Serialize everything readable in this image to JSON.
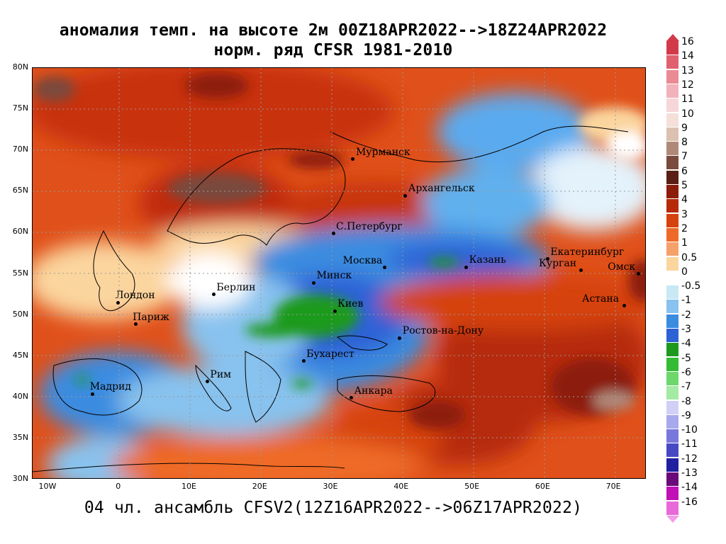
{
  "title": {
    "line1": "аномалия темп. на высоте 2м 00Z18APR2022-->18Z24APR2022",
    "line2": "норм. ряд CFSR 1981-2010"
  },
  "footer": "04 чл. ансамбль CFSV2(12Z16APR2022-->06Z17APR2022)",
  "lat_labels": [
    "80N",
    "75N",
    "70N",
    "65N",
    "60N",
    "55N",
    "50N",
    "45N",
    "40N",
    "35N",
    "30N"
  ],
  "lon_labels": [
    "10W",
    "0",
    "10E",
    "20E",
    "30E",
    "40E",
    "50E",
    "60E",
    "70E"
  ],
  "cities": [
    {
      "name": "Мурманск",
      "lon": 33.1,
      "lat": 68.9
    },
    {
      "name": "Архангельск",
      "lon": 40.5,
      "lat": 64.5
    },
    {
      "name": "С.Петербург",
      "lon": 30.3,
      "lat": 59.9
    },
    {
      "name": "Москва",
      "lon": 37.6,
      "lat": 55.75
    },
    {
      "name": "Казань",
      "lon": 49.1,
      "lat": 55.8
    },
    {
      "name": "Екатеринбург",
      "lon": 60.6,
      "lat": 56.8
    },
    {
      "name": "Курган",
      "lon": 65.3,
      "lat": 55.4
    },
    {
      "name": "Омск",
      "lon": 73.4,
      "lat": 55.0
    },
    {
      "name": "Астана",
      "lon": 71.4,
      "lat": 51.1
    },
    {
      "name": "Минск",
      "lon": 27.55,
      "lat": 53.9
    },
    {
      "name": "Киев",
      "lon": 30.5,
      "lat": 50.45
    },
    {
      "name": "Берлин",
      "lon": 13.4,
      "lat": 52.5
    },
    {
      "name": "Лондон",
      "lon": -0.1,
      "lat": 51.5
    },
    {
      "name": "Париж",
      "lon": 2.35,
      "lat": 48.85
    },
    {
      "name": "Ростов-на-Дону",
      "lon": 39.7,
      "lat": 47.2
    },
    {
      "name": "Бухарест",
      "lon": 26.1,
      "lat": 44.4
    },
    {
      "name": "Рим",
      "lon": 12.5,
      "lat": 41.9
    },
    {
      "name": "Мадрид",
      "lon": -3.7,
      "lat": 40.4
    },
    {
      "name": "Анкара",
      "lon": 32.85,
      "lat": 39.9
    }
  ],
  "legend": {
    "labels": [
      "16",
      "14",
      "13",
      "12",
      "11",
      "10",
      "9",
      "8",
      "7",
      "6",
      "5",
      "4",
      "3",
      "2",
      "1",
      "0.5",
      "0",
      "-0.5",
      "-1",
      "-2",
      "-3",
      "-4",
      "-5",
      "-6",
      "-7",
      "-8",
      "-9",
      "-10",
      "-11",
      "-12",
      "-13",
      "-14",
      "-16"
    ],
    "colors": [
      "#d23a4a",
      "#e0606e",
      "#ea8a95",
      "#f2b2ba",
      "#f7d6da",
      "#f4e0d8",
      "#dcc0b0",
      "#b08878",
      "#7a4a3c",
      "#5a1e14",
      "#8c1c0a",
      "#b62a0a",
      "#d6420e",
      "#ee6a28",
      "#f6a06a",
      "#fbd59e",
      "#ffffff",
      "#c8e8f4",
      "#88c2ee",
      "#3a8ce0",
      "#2d62d6",
      "#1d9a1d",
      "#34bb34",
      "#6cd86c",
      "#a4eaa4",
      "#d0d0f6",
      "#a8a8ec",
      "#7878dc",
      "#4848c4",
      "#2020a0",
      "#6a0a7a",
      "#c010b6",
      "#e86ad8"
    ],
    "top_arrow_color": "#d23a4a",
    "bottom_arrow_color": "#f49ae8"
  }
}
